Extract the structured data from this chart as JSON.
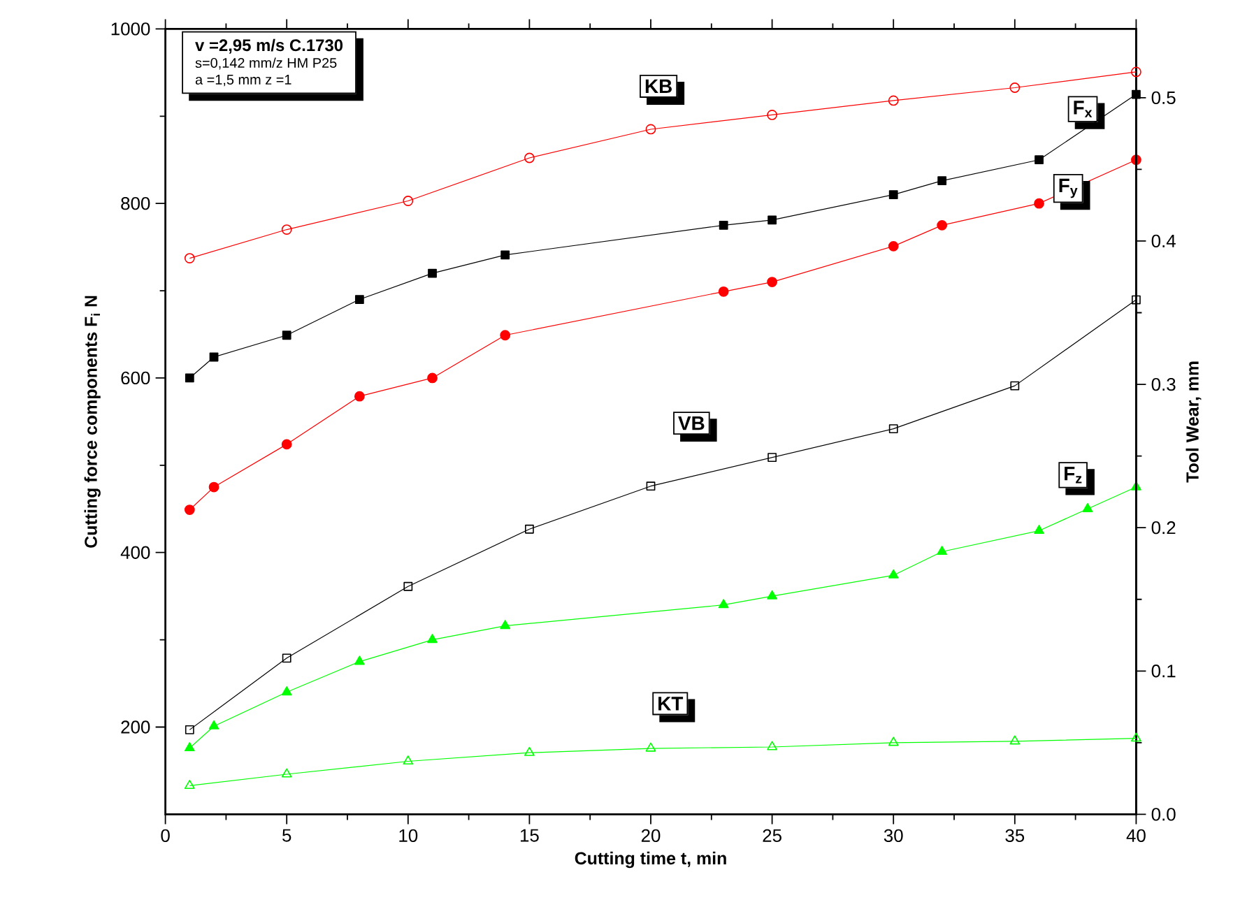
{
  "chart_data": {
    "type": "line",
    "xlabel": "Cutting time t, min",
    "ylabel": "Cutting force components F$_{i}$ N",
    "y2label": "Tool Wear, mm",
    "annotations": [
      "v =2,95 m/s   C.1730",
      "s=0,142 mm/z  HM P25",
      "a =1,5 mm     z =1"
    ],
    "xlim": [
      0,
      40
    ],
    "xticks": [
      0,
      5,
      10,
      15,
      20,
      25,
      30,
      35,
      40
    ],
    "ylim": [
      100,
      1000
    ],
    "yticks": [
      200,
      400,
      600,
      800,
      1000
    ],
    "y2lim": [
      0,
      0.548
    ],
    "y2ticks": [
      {
        "value": 0,
        "label": "0.0"
      },
      {
        "value": 0.1,
        "label": "0.1"
      },
      {
        "value": 0.2,
        "label": "0.2"
      },
      {
        "value": 0.3,
        "label": "0.3"
      },
      {
        "value": 0.4,
        "label": "0.4"
      },
      {
        "value": 0.5,
        "label": "0.5"
      }
    ],
    "line_style": "solid",
    "series": [
      {
        "name": "KB",
        "color": "#ff0000",
        "marker": "circle",
        "axis": "y2",
        "x": [
          1,
          5,
          10,
          15,
          20,
          25,
          30,
          35,
          40
        ],
        "values": [
          0.388,
          0.408,
          0.428,
          0.458,
          0.478,
          0.488,
          0.498,
          0.507,
          0.518
        ]
      },
      {
        "name": "F$_{x}$",
        "color": "#000000",
        "marker": "square",
        "x": [
          1,
          2,
          5,
          8,
          11,
          14,
          23,
          25,
          30,
          32,
          36,
          40
        ],
        "values": [
          600,
          624,
          649,
          690,
          720,
          741,
          775,
          781,
          810,
          826,
          850,
          925
        ]
      },
      {
        "name": "F$_{y}$",
        "color": "#ff0000",
        "marker": "circle",
        "x": [
          1,
          2,
          5,
          8,
          11,
          14,
          23,
          25,
          30,
          32,
          36,
          40
        ],
        "values": [
          449,
          475,
          524,
          579,
          600,
          649,
          699,
          710,
          751,
          775,
          800,
          850
        ]
      },
      {
        "name": "VB",
        "color": "#000000",
        "marker": "square",
        "axis": "y2",
        "x": [
          1,
          5,
          10,
          15,
          20,
          25,
          30,
          35,
          40
        ],
        "values": [
          0.059,
          0.109,
          0.159,
          0.199,
          0.229,
          0.249,
          0.269,
          0.299,
          0.359
        ]
      },
      {
        "name": "F$_{z}$",
        "color": "#00ff00",
        "marker": "triangle",
        "x": [
          1,
          2,
          5,
          8,
          11,
          14,
          23,
          25,
          30,
          32,
          36,
          38,
          40
        ],
        "values": [
          176,
          201,
          240,
          275,
          300,
          316,
          340,
          350,
          374,
          401,
          425,
          450,
          475
        ]
      },
      {
        "name": "KT",
        "color": "#00ff00",
        "marker": "triangle",
        "axis": "y2",
        "x": [
          1,
          5,
          10,
          15,
          20,
          25,
          30,
          35,
          40
        ],
        "values": [
          0.02,
          0.028,
          0.037,
          0.043,
          0.046,
          0.047,
          0.05,
          0.051,
          0.053
        ]
      }
    ]
  }
}
